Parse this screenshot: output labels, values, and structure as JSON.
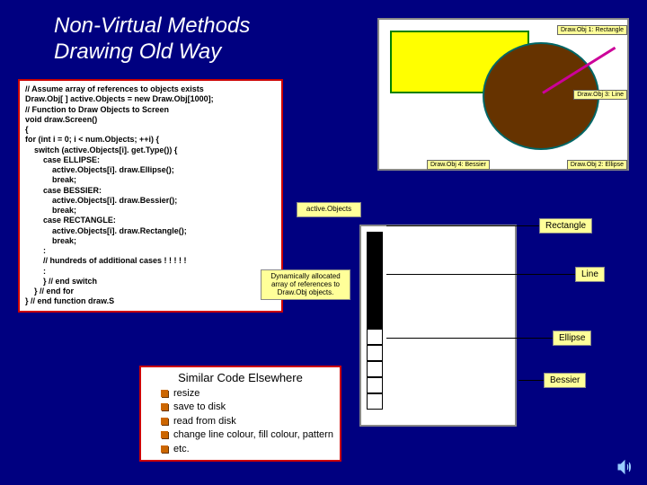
{
  "title_line1": "Non-Virtual Methods",
  "title_line2": "Drawing Old Way",
  "code": {
    "l1": "// Assume array of references to objects exists",
    "l2": "Draw.Obj[ ] active.Objects = new Draw.Obj[1000];",
    "l3": "// Function to Draw Objects to Screen",
    "l4": "void draw.Screen()",
    "l5": "{",
    "l6": "for (int i = 0; i < num.Objects; ++i) {",
    "l7": "switch (active.Objects[i]. get.Type()) {",
    "l8": "case ELLIPSE:",
    "l8a": "active.Objects[i]. draw.Ellipse();",
    "l8b": "break;",
    "l9": "case BESSIER:",
    "l9a": "active.Objects[i]. draw.Bessier();",
    "l9b": "break;",
    "l10": "case RECTANGLE:",
    "l10a": "active.Objects[i]. draw.Rectangle();",
    "l10b": "break;",
    "l11": ":",
    "l12": "// hundreds of additional cases ! ! ! ! !",
    "l13": ":",
    "l14": "}  // end switch",
    "l15": "} // end for",
    "l16": "} // end function draw.S"
  },
  "shape_labels": {
    "rect": "Draw.Obj 1: Rectangle",
    "line": "Draw.Obj 3: Line",
    "ellipse": "Draw.Obj 2: Ellipse",
    "bessier": "Draw.Obj 4: Bessier"
  },
  "active_objects_label": "active.Objects",
  "dyn_array_label": "Dynamically allocated array of references to Draw.Obj objects.",
  "type_labels": {
    "rect": "Rectangle",
    "line": "Line",
    "ellipse": "Ellipse",
    "bessier": "Bessier"
  },
  "similar": {
    "title": "Similar Code Elsewhere",
    "items": [
      "resize",
      "save to disk",
      "read from disk",
      "change line colour, fill colour, pattern",
      "etc."
    ]
  },
  "array_filled": [
    0,
    1,
    2,
    3,
    4,
    5
  ],
  "array_total": 11,
  "colors": {
    "bg": "#000080",
    "box_border": "#cc0000",
    "rect_fill": "#ffff00",
    "rect_border": "#008000",
    "ellipse_fill": "#663300",
    "line_stroke": "#cc0099",
    "label_bg": "#ffff99"
  }
}
